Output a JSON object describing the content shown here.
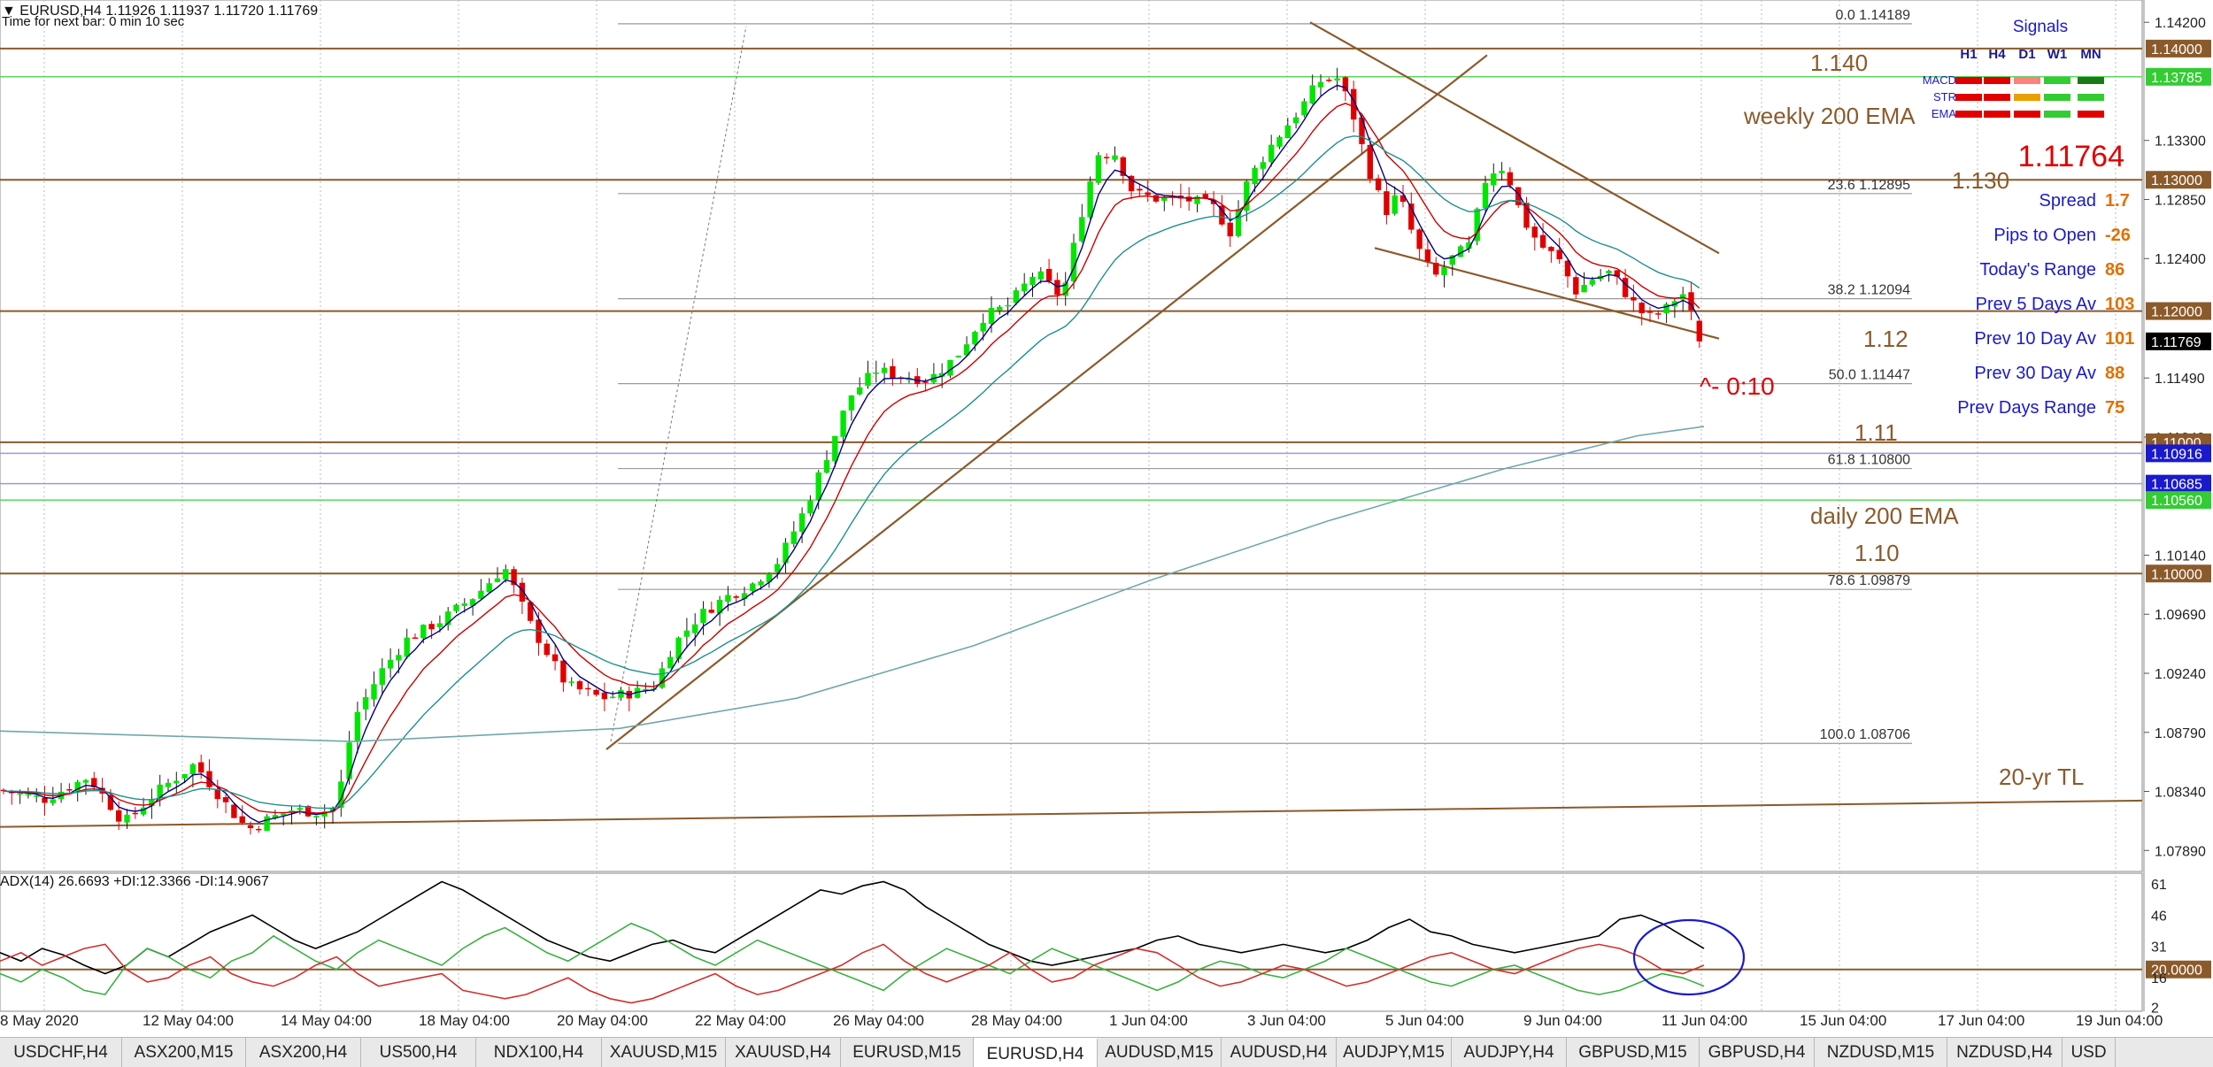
{
  "header": {
    "title": "▼ EURUSD,H4  1.11926 1.11937 1.11720 1.11769",
    "subtitle": "Time for next bar: 0 min 10 sec"
  },
  "colors": {
    "bull": "#00e600",
    "bear": "#e00000",
    "ema_fast": "#000080",
    "ema_mid": "#cc0000",
    "ema_slow": "#1f8f8f",
    "ema_200": "#6fa8a8",
    "level": "#8b5a2b",
    "trendline": "#8b5a2b",
    "fib": "#9a9a9a",
    "green_level": "#5cd65c",
    "blue_level": "#9a9ad8",
    "signal_blue": "#1a1acc",
    "signal_orange": "#e07000",
    "adx": "#000000",
    "plus_di": "#3cb043",
    "minus_di": "#d03030"
  },
  "chart_data": [
    {
      "type": "candlestick",
      "symbol": "EURUSD",
      "timeframe": "H4",
      "ohlc_last": {
        "open": 1.11926,
        "high": 1.11937,
        "low": 1.1172,
        "close": 1.11769
      },
      "close_path": [
        [
          0,
          1.0835
        ],
        [
          50,
          1.0828
        ],
        [
          100,
          1.0845
        ],
        [
          140,
          1.081
        ],
        [
          180,
          1.0835
        ],
        [
          220,
          1.0855
        ],
        [
          260,
          1.082
        ],
        [
          280,
          1.0805
        ],
        [
          300,
          1.0812
        ],
        [
          330,
          1.082
        ],
        [
          360,
          1.0818
        ],
        [
          380,
          1.0822
        ],
        [
          400,
          1.089
        ],
        [
          430,
          1.0925
        ],
        [
          460,
          1.095
        ],
        [
          500,
          1.0965
        ],
        [
          540,
          1.0985
        ],
        [
          570,
          1.1005
        ],
        [
          600,
          1.096
        ],
        [
          640,
          1.0915
        ],
        [
          680,
          1.0905
        ],
        [
          720,
          1.091
        ],
        [
          740,
          1.0915
        ],
        [
          760,
          1.0945
        ],
        [
          790,
          1.0968
        ],
        [
          820,
          1.0982
        ],
        [
          850,
          1.0992
        ],
        [
          880,
          1.101
        ],
        [
          910,
          1.105
        ],
        [
          940,
          1.11
        ],
        [
          960,
          1.1135
        ],
        [
          990,
          1.1155
        ],
        [
          1020,
          1.115
        ],
        [
          1050,
          1.1148
        ],
        [
          1080,
          1.1165
        ],
        [
          1110,
          1.1195
        ],
        [
          1140,
          1.1205
        ],
        [
          1170,
          1.123
        ],
        [
          1200,
          1.121
        ],
        [
          1220,
          1.127
        ],
        [
          1240,
          1.132
        ],
        [
          1260,
          1.132
        ],
        [
          1280,
          1.129
        ],
        [
          1310,
          1.1285
        ],
        [
          1340,
          1.1285
        ],
        [
          1370,
          1.128
        ],
        [
          1390,
          1.126
        ],
        [
          1410,
          1.13
        ],
        [
          1440,
          1.133
        ],
        [
          1470,
          1.1355
        ],
        [
          1490,
          1.1375
        ],
        [
          1510,
          1.1378
        ],
        [
          1525,
          1.1358
        ],
        [
          1545,
          1.131
        ],
        [
          1565,
          1.1275
        ],
        [
          1580,
          1.129
        ],
        [
          1600,
          1.125
        ],
        [
          1620,
          1.1225
        ],
        [
          1640,
          1.124
        ],
        [
          1660,
          1.125
        ],
        [
          1680,
          1.1305
        ],
        [
          1700,
          1.131
        ],
        [
          1720,
          1.127
        ],
        [
          1740,
          1.125
        ],
        [
          1760,
          1.124
        ],
        [
          1780,
          1.1215
        ],
        [
          1800,
          1.1225
        ],
        [
          1820,
          1.123
        ],
        [
          1840,
          1.121
        ],
        [
          1860,
          1.1195
        ],
        [
          1880,
          1.12
        ],
        [
          1900,
          1.1215
        ],
        [
          1915,
          1.119
        ],
        [
          1925,
          1.1177
        ]
      ],
      "price_axis": {
        "range": [
          1.0773,
          1.1437
        ],
        "ticks": [
          "1.14200",
          "1.14000",
          "1.13785",
          "1.13300",
          "1.13000",
          "1.12850",
          "1.12400",
          "1.12000",
          "1.11769",
          "1.11490",
          "1.11040",
          "1.11000",
          "1.10916",
          "1.10685",
          "1.10560",
          "1.10140",
          "1.10000",
          "1.09690",
          "1.09240",
          "1.08790",
          "1.08340",
          "1.07890"
        ],
        "plain_ticks": [
          "1.14200",
          "1.13300",
          "1.12850",
          "1.12400",
          "1.11490",
          "1.11040",
          "1.10140",
          "1.09690",
          "1.09240",
          "1.08790",
          "1.08340",
          "1.07890"
        ],
        "boxed_ticks": [
          {
            "label": "1.14000",
            "bg": "#8b5a2b",
            "fg": "#ffffff"
          },
          {
            "label": "1.13785",
            "bg": "#33cc33",
            "fg": "#ffffff"
          },
          {
            "label": "1.13000",
            "bg": "#8b5a2b",
            "fg": "#ffffff"
          },
          {
            "label": "1.12000",
            "bg": "#8b5a2b",
            "fg": "#ffffff"
          },
          {
            "label": "1.11769",
            "bg": "#000000",
            "fg": "#ffffff"
          },
          {
            "label": "1.11000",
            "bg": "#8b5a2b",
            "fg": "#ffffff"
          },
          {
            "label": "1.10916",
            "bg": "#1a1acc",
            "fg": "#ffffff"
          },
          {
            "label": "1.10685",
            "bg": "#1a1acc",
            "fg": "#ffffff"
          },
          {
            "label": "1.10560",
            "bg": "#33cc33",
            "fg": "#ffffff"
          },
          {
            "label": "1.10000",
            "bg": "#8b5a2b",
            "fg": "#ffffff"
          }
        ]
      },
      "time_axis": [
        "8 May 2020",
        "12 May 04:00",
        "14 May 04:00",
        "18 May 04:00",
        "20 May 04:00",
        "22 May 04:00",
        "26 May 04:00",
        "28 May 04:00",
        "1 Jun 04:00",
        "3 Jun 04:00",
        "5 Jun 04:00",
        "9 Jun 04:00",
        "11 Jun 04:00",
        "15 Jun 04:00",
        "17 Jun 04:00",
        "19 Jun 04:00"
      ],
      "horizontal_levels": [
        {
          "price": 1.14,
          "label": "1.140",
          "kind": "level"
        },
        {
          "price": 1.13,
          "label": "1.130",
          "kind": "level"
        },
        {
          "price": 1.12,
          "label": "1.12",
          "kind": "level"
        },
        {
          "price": 1.11,
          "label": "1.11",
          "kind": "level"
        },
        {
          "price": 1.1,
          "label": "1.10",
          "kind": "level"
        },
        {
          "price": 1.13785,
          "label": "",
          "kind": "green"
        },
        {
          "price": 1.1056,
          "label": "",
          "kind": "green"
        },
        {
          "price": 1.10916,
          "label": "",
          "kind": "blue"
        },
        {
          "price": 1.10685,
          "label": "",
          "kind": "blue"
        }
      ],
      "fibonacci": [
        {
          "ratio": "0.0",
          "price": 1.14189,
          "label": "0.0  1.14189"
        },
        {
          "ratio": "23.6",
          "price": 1.12895,
          "label": "23.6  1.12895"
        },
        {
          "ratio": "38.2",
          "price": 1.12094,
          "label": "38.2  1.12094"
        },
        {
          "ratio": "50.0",
          "price": 1.11447,
          "label": "50.0  1.11447"
        },
        {
          "ratio": "61.8",
          "price": 1.108,
          "label": "61.8  1.10800"
        },
        {
          "ratio": "78.6",
          "price": 1.09879,
          "label": "78.6  1.09879"
        },
        {
          "ratio": "100.0",
          "price": 1.08706,
          "label": "100.0  1.08706"
        }
      ],
      "annotations": [
        {
          "text": "1.140",
          "color": "#8b5a2b"
        },
        {
          "text": "weekly 200 EMA",
          "color": "#8b5a2b"
        },
        {
          "text": "1.130",
          "color": "#8b5a2b"
        },
        {
          "text": "1.12",
          "color": "#8b5a2b"
        },
        {
          "text": "^- 0:10",
          "color": "#e00000"
        },
        {
          "text": "1.11",
          "color": "#8b5a2b"
        },
        {
          "text": "daily 200 EMA",
          "color": "#8b5a2b"
        },
        {
          "text": "1.10",
          "color": "#8b5a2b"
        },
        {
          "text": "20-yr TL",
          "color": "#8b5a2b"
        }
      ]
    },
    {
      "type": "line",
      "title": "ADX(14) 26.6693 +DI:12.3366 -DI:14.9067",
      "ylim": [
        0,
        66
      ],
      "y_ticks": [
        "61",
        "46",
        "31",
        "20.0000",
        "16",
        "2"
      ],
      "series": [
        {
          "name": "ADX",
          "values": [
            28,
            24,
            30,
            27,
            22,
            18,
            22,
            30,
            26,
            32,
            38,
            42,
            46,
            40,
            34,
            30,
            34,
            38,
            44,
            50,
            56,
            62,
            58,
            52,
            46,
            40,
            34,
            30,
            26,
            24,
            28,
            32,
            34,
            30,
            28,
            34,
            40,
            46,
            52,
            58,
            56,
            60,
            62,
            58,
            50,
            44,
            38,
            32,
            28,
            24,
            22,
            24,
            26,
            28,
            30,
            34,
            36,
            32,
            30,
            28,
            30,
            32,
            30,
            28,
            30,
            34,
            40,
            44,
            38,
            36,
            32,
            30,
            28,
            30,
            32,
            34,
            36,
            44,
            46,
            42,
            36,
            30
          ]
        },
        {
          "name": "+DI",
          "values": [
            18,
            14,
            20,
            16,
            10,
            8,
            22,
            30,
            26,
            20,
            16,
            24,
            28,
            36,
            30,
            24,
            20,
            28,
            34,
            30,
            26,
            22,
            30,
            36,
            40,
            34,
            28,
            24,
            30,
            36,
            42,
            38,
            32,
            26,
            22,
            28,
            34,
            30,
            26,
            22,
            18,
            14,
            10,
            18,
            24,
            30,
            26,
            22,
            18,
            24,
            30,
            26,
            22,
            18,
            14,
            10,
            14,
            20,
            24,
            22,
            18,
            16,
            20,
            24,
            30,
            26,
            22,
            18,
            14,
            12,
            16,
            20,
            22,
            18,
            14,
            10,
            8,
            10,
            14,
            18,
            16,
            12
          ]
        },
        {
          "name": "-DI",
          "values": [
            24,
            28,
            22,
            26,
            30,
            32,
            20,
            14,
            16,
            22,
            26,
            18,
            14,
            12,
            16,
            22,
            26,
            18,
            12,
            14,
            16,
            18,
            10,
            8,
            6,
            8,
            12,
            16,
            10,
            6,
            4,
            6,
            10,
            14,
            18,
            12,
            8,
            10,
            14,
            18,
            22,
            28,
            32,
            24,
            18,
            14,
            18,
            22,
            28,
            20,
            14,
            16,
            22,
            26,
            30,
            28,
            22,
            16,
            12,
            14,
            18,
            22,
            20,
            16,
            12,
            14,
            18,
            22,
            26,
            28,
            24,
            20,
            18,
            22,
            26,
            30,
            32,
            30,
            26,
            20,
            18,
            22
          ]
        }
      ]
    }
  ],
  "signals": {
    "title": "Signals",
    "columns": [
      "H1",
      "H4",
      "D1",
      "W1",
      "MN"
    ],
    "rows": [
      {
        "label": "MACD",
        "colors": [
          "#e00000",
          "#e00000",
          "#ff8080",
          "#33cc33",
          "#1a7a1a"
        ]
      },
      {
        "label": "STR",
        "colors": [
          "#e00000",
          "#e00000",
          "#e8a000",
          "#33cc33",
          "#33cc33"
        ]
      },
      {
        "label": "EMA",
        "colors": [
          "#e00000",
          "#e00000",
          "#e00000",
          "#33cc33",
          "#e00000"
        ]
      }
    ],
    "price": "1.11764",
    "stats": [
      {
        "label": "Spread",
        "value": "1.7"
      },
      {
        "label": "Pips to Open",
        "value": "-26"
      },
      {
        "label": "Today's Range",
        "value": "86"
      },
      {
        "label": "Prev 5 Days Av",
        "value": "103"
      },
      {
        "label": "Prev 10 Day Av",
        "value": "101"
      },
      {
        "label": "Prev 30 Day Av",
        "value": "88"
      },
      {
        "label": "Prev Days Range",
        "value": "75"
      }
    ]
  },
  "tabs": [
    {
      "label": "USDCHF,H4",
      "active": false
    },
    {
      "label": "ASX200,M15",
      "active": false
    },
    {
      "label": "ASX200,H4",
      "active": false
    },
    {
      "label": "US500,H4",
      "active": false
    },
    {
      "label": "NDX100,H4",
      "active": false
    },
    {
      "label": "XAUUSD,M15",
      "active": false
    },
    {
      "label": "XAUUSD,H4",
      "active": false
    },
    {
      "label": "EURUSD,M15",
      "active": false
    },
    {
      "label": "EURUSD,H4",
      "active": true
    },
    {
      "label": "AUDUSD,M15",
      "active": false
    },
    {
      "label": "AUDUSD,H4",
      "active": false
    },
    {
      "label": "AUDJPY,M15",
      "active": false
    },
    {
      "label": "AUDJPY,H4",
      "active": false
    },
    {
      "label": "GBPUSD,M15",
      "active": false
    },
    {
      "label": "GBPUSD,H4",
      "active": false
    },
    {
      "label": "NZDUSD,M15",
      "active": false
    },
    {
      "label": "NZDUSD,H4",
      "active": false
    },
    {
      "label": "USD",
      "active": false
    }
  ]
}
